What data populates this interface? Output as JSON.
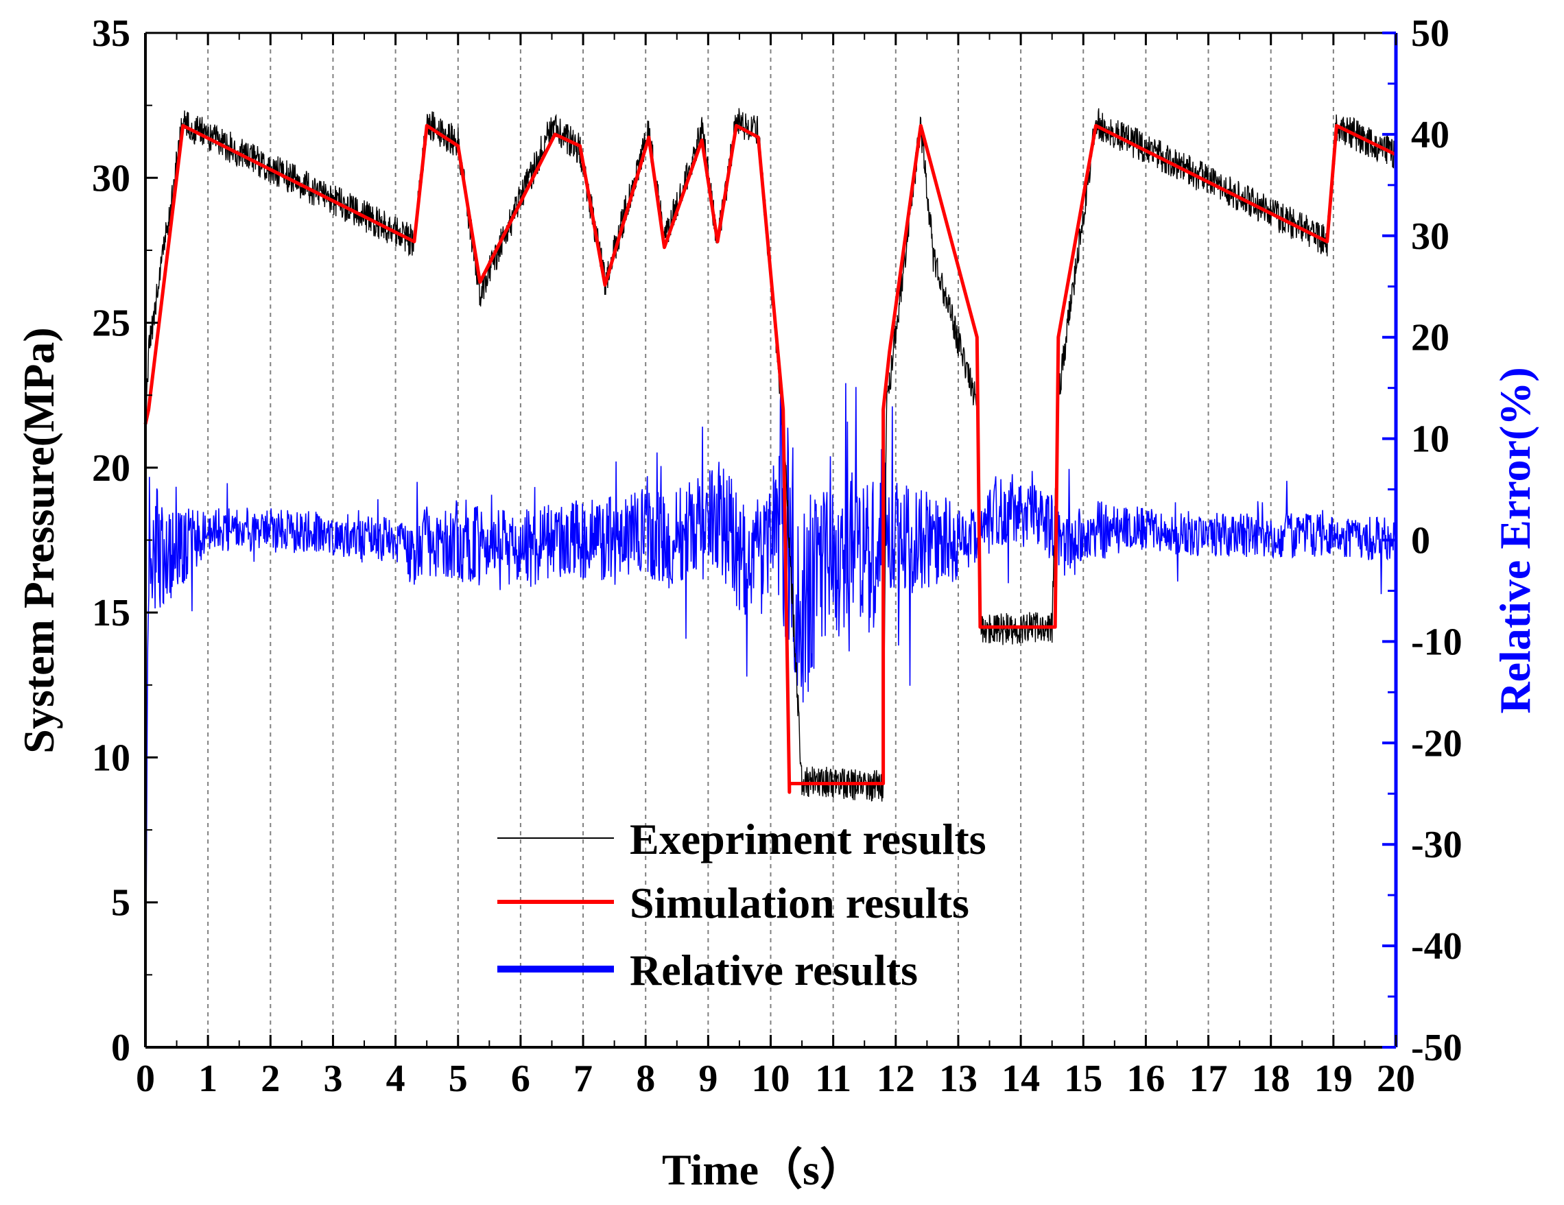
{
  "chart_data": {
    "type": "line",
    "title": "",
    "xlabel": "Time（s）",
    "ylabel": "System Pressure(MPa)",
    "y2label": "Relative Error(%)",
    "xlim": [
      0,
      20
    ],
    "ylim": [
      0,
      35
    ],
    "y2lim": [
      -50,
      50
    ],
    "xticks": [
      "0",
      "1",
      "2",
      "3",
      "4",
      "5",
      "6",
      "7",
      "8",
      "9",
      "10",
      "11",
      "12",
      "13",
      "14",
      "15",
      "16",
      "17",
      "18",
      "19",
      "20"
    ],
    "yticks": [
      "0",
      "5",
      "10",
      "15",
      "20",
      "25",
      "30",
      "35"
    ],
    "y2ticks": [
      "-50",
      "-40",
      "-30",
      "-20",
      "-10",
      "0",
      "10",
      "20",
      "30",
      "40",
      "50"
    ],
    "grid": "vertical dashed",
    "legend_position": "lower-center",
    "colors": {
      "experiment": "#000000",
      "simulation": "#ff0000",
      "relative": "#0000ff",
      "axis": "#000000",
      "axis2": "#0000ff"
    },
    "series": [
      {
        "name": "Exepriment results",
        "axis": "left",
        "noise": 0.55,
        "x": [
          0,
          0.05,
          0.6,
          4.3,
          4.5,
          5.0,
          5.35,
          6.5,
          6.95,
          7.35,
          8.05,
          8.3,
          8.9,
          9.15,
          9.45,
          9.8,
          10.2,
          10.5,
          11.8,
          11.85,
          12.4,
          12.6,
          13.3,
          13.35,
          13.45,
          14.5,
          14.6,
          15.2,
          18.9,
          19.05,
          20
        ],
        "values": [
          21,
          24,
          31.9,
          27.8,
          31.9,
          31.2,
          26.0,
          31.8,
          31.0,
          26.4,
          31.6,
          27.8,
          31.6,
          27.8,
          31.9,
          31.6,
          21.5,
          9.2,
          9.0,
          22.0,
          31.8,
          27.3,
          22.2,
          14.5,
          14.4,
          14.5,
          22.5,
          31.9,
          27.8,
          31.8,
          30.8
        ]
      },
      {
        "name": "Simulation results",
        "axis": "left",
        "x": [
          0,
          0.05,
          0.6,
          4.3,
          4.5,
          5.0,
          5.35,
          6.55,
          6.95,
          7.35,
          8.05,
          8.3,
          8.9,
          9.15,
          9.45,
          9.8,
          10.2,
          10.3,
          10.3,
          11.8,
          11.8,
          11.9,
          12.4,
          13.3,
          13.35,
          14.55,
          14.6,
          15.2,
          18.9,
          19.05,
          20
        ],
        "values": [
          21.5,
          22,
          31.8,
          27.8,
          31.8,
          31.1,
          26.4,
          31.5,
          31.1,
          26.3,
          31.4,
          27.6,
          31.3,
          27.8,
          31.8,
          31.4,
          22.0,
          8.8,
          9.1,
          9.1,
          22.0,
          24.0,
          31.8,
          24.5,
          14.5,
          14.5,
          24.5,
          31.8,
          27.8,
          31.8,
          30.8
        ]
      },
      {
        "name": "Relative results",
        "axis": "right",
        "x": [
          0,
          0.05,
          0.3,
          1,
          2,
          3,
          4,
          4.3,
          4.5,
          5,
          5.5,
          6,
          6.5,
          7,
          7.5,
          8,
          8.3,
          8.8,
          9.2,
          9.6,
          10,
          10.2,
          10.5,
          10.8,
          11.2,
          11.6,
          11.8,
          12,
          12.5,
          13,
          13.35,
          13.6,
          14,
          14.5,
          14.7,
          15.2,
          16,
          17,
          18,
          19,
          20
        ],
        "values": [
          -50,
          0,
          -2,
          1,
          1,
          0.5,
          0,
          -2,
          0,
          0,
          -1,
          -1,
          0,
          0,
          0,
          1,
          0,
          1,
          2,
          -2,
          0,
          5,
          -5,
          -3,
          -1,
          -2,
          2,
          0,
          0,
          0,
          0,
          3,
          3,
          1,
          -1,
          1,
          1,
          0.5,
          0.5,
          0.5,
          0
        ],
        "spread": [
          0,
          8,
          5,
          2.2,
          2.2,
          2.2,
          2.2,
          3,
          3.5,
          4,
          4,
          4,
          4,
          4,
          4.5,
          4.5,
          4.5,
          5,
          6,
          6,
          5,
          14,
          12,
          8,
          8,
          8,
          8,
          6,
          5,
          4,
          2.5,
          3.5,
          3.5,
          3.5,
          3.5,
          3,
          2.2,
          2.2,
          2.2,
          2.2,
          2.2
        ]
      }
    ]
  }
}
